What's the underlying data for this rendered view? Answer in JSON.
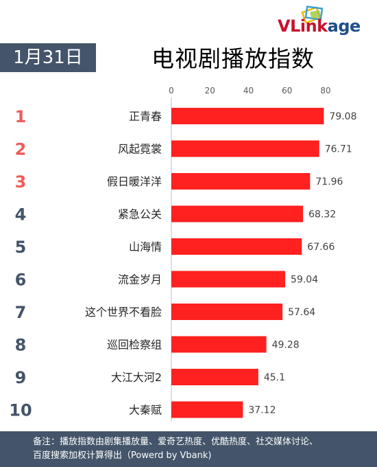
{
  "brand": {
    "logo_text_a": "VLink",
    "logo_text_b": "age",
    "color_a": "#c8102e",
    "color_b": "#1f4e8c"
  },
  "header": {
    "date": "1月31日",
    "title": "电视剧播放指数"
  },
  "colors": {
    "bar": "#ff2020",
    "top_rank": "#f05a5a",
    "rank": "#44546a",
    "badge": "#44546a",
    "footer": "#44546a"
  },
  "chart_data": {
    "type": "bar",
    "orientation": "horizontal",
    "title": "电视剧播放指数",
    "ranks": [
      "1",
      "2",
      "3",
      "4",
      "5",
      "6",
      "7",
      "8",
      "9",
      "10"
    ],
    "categories": [
      "正青春",
      "风起霓裳",
      "假日暖洋洋",
      "紧急公关",
      "山海情",
      "流金岁月",
      "这个世界不看脸",
      "巡回检察组",
      "大江大河2",
      "大秦赋"
    ],
    "values": [
      79.08,
      76.71,
      71.96,
      68.32,
      67.66,
      59.04,
      57.64,
      49.28,
      45.1,
      37.12
    ],
    "labels": [
      "79.08",
      "76.71",
      "71.96",
      "68.32",
      "67.66",
      "59.04",
      "57.64",
      "49.28",
      "45.1",
      "37.12"
    ],
    "x_ticks": [
      "0",
      "20",
      "40",
      "60",
      "80"
    ],
    "xlim": [
      0,
      80
    ],
    "xlabel": "",
    "ylabel": "",
    "axis_position": "top",
    "grid": false,
    "legend": "none"
  },
  "footer": {
    "line1": "备注：播放指数由剧集播放量、爱奇艺热度、优酷热度、社交媒体讨论、",
    "line2": "百度搜索加权计算得出（Powerd by Vbank)"
  }
}
